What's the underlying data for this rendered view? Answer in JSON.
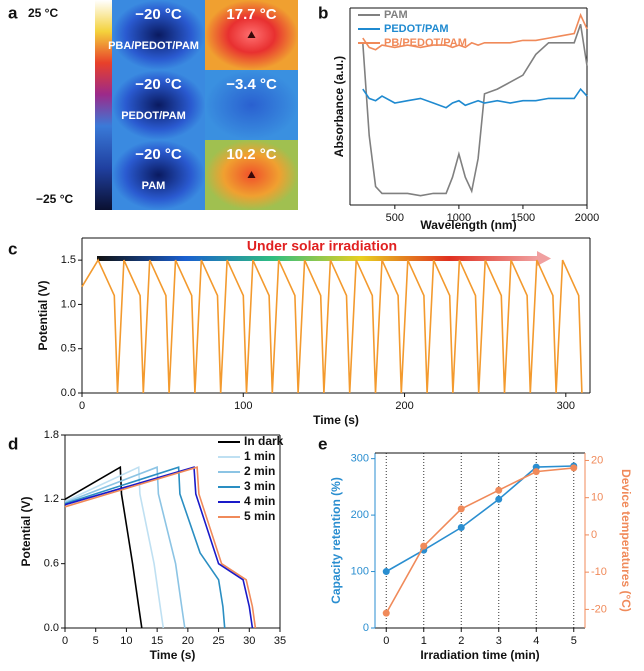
{
  "chart_data": [
    {
      "type": "thermal-image",
      "panel_label": "a",
      "scale_labels": [
        "25 °C",
        "−25 °C"
      ],
      "cells": [
        {
          "temperature": "−20 °C",
          "sample": "PBA/PEDOT/PAM"
        },
        {
          "temperature": "17.7 °C"
        },
        {
          "temperature": "−20 °C",
          "sample": "PEDOT/PAM"
        },
        {
          "temperature": "−3.4 °C"
        },
        {
          "temperature": "−20 °C",
          "sample": "PAM"
        },
        {
          "temperature": "10.2 °C"
        }
      ]
    },
    {
      "type": "line",
      "panel_label": "b",
      "xlabel": "Wavelength (nm)",
      "ylabel": "Absorbance (a.u.)",
      "x": [
        250,
        300,
        350,
        400,
        500,
        600,
        700,
        800,
        900,
        950,
        1000,
        1050,
        1100,
        1150,
        1200,
        1300,
        1400,
        1500,
        1600,
        1700,
        1800,
        1900,
        1950,
        2000
      ],
      "series": [
        {
          "name": "PAM",
          "color": "#808080",
          "values": [
            0.7,
            0.3,
            0.08,
            0.05,
            0.05,
            0.05,
            0.04,
            0.05,
            0.05,
            0.12,
            0.22,
            0.12,
            0.06,
            0.2,
            0.48,
            0.5,
            0.53,
            0.56,
            0.65,
            0.7,
            0.7,
            0.7,
            0.78,
            0.6
          ]
        },
        {
          "name": "PEDOT/PAM",
          "color": "#1f8ad0",
          "values": [
            0.5,
            0.46,
            0.45,
            0.47,
            0.44,
            0.45,
            0.46,
            0.44,
            0.42,
            0.44,
            0.45,
            0.43,
            0.44,
            0.45,
            0.44,
            0.45,
            0.44,
            0.45,
            0.45,
            0.46,
            0.46,
            0.46,
            0.5,
            0.47
          ]
        },
        {
          "name": "PB/PEDOT/PAM",
          "color": "#f08a5a",
          "values": [
            0.72,
            0.68,
            0.67,
            0.69,
            0.68,
            0.69,
            0.68,
            0.69,
            0.69,
            0.68,
            0.69,
            0.68,
            0.7,
            0.69,
            0.7,
            0.7,
            0.7,
            0.71,
            0.71,
            0.72,
            0.73,
            0.74,
            0.82,
            0.76
          ]
        }
      ],
      "xlim": [
        150,
        2000
      ],
      "xticks": [
        500,
        1000,
        1500,
        2000
      ],
      "ylim": [
        0,
        0.85
      ]
    },
    {
      "type": "line",
      "panel_label": "c",
      "xlabel": "Time (s)",
      "ylabel": "Potential (V)",
      "annotation": "Under solar irradiation",
      "x": [
        0,
        10,
        20,
        22,
        26,
        36,
        38,
        42,
        52,
        54,
        58,
        68,
        70,
        74,
        84,
        86,
        90,
        100,
        102,
        106,
        116,
        118,
        122,
        132,
        134,
        138,
        148,
        150,
        154,
        164,
        166,
        170,
        180,
        182,
        186,
        196,
        198,
        202,
        212,
        214,
        218,
        228,
        230,
        234,
        244,
        246,
        250,
        260,
        262,
        266,
        276,
        278,
        282,
        292,
        294,
        298,
        308,
        310
      ],
      "series": [
        {
          "name": null,
          "color": "#f39a2e",
          "values": [
            1.2,
            1.5,
            1.1,
            0,
            1.5,
            1.1,
            0,
            1.5,
            1.1,
            0,
            1.5,
            1.1,
            0,
            1.5,
            1.1,
            0,
            1.5,
            1.1,
            0,
            1.5,
            1.1,
            0,
            1.5,
            1.1,
            0,
            1.5,
            1.1,
            0,
            1.5,
            1.1,
            0,
            1.5,
            1.1,
            0,
            1.5,
            1.1,
            0,
            1.5,
            1.1,
            0,
            1.5,
            1.1,
            0,
            1.5,
            1.1,
            0,
            1.5,
            1.1,
            0,
            1.5,
            1.1,
            0,
            1.5,
            1.1,
            0,
            1.5,
            1.1,
            0
          ]
        }
      ],
      "xlim": [
        0,
        315
      ],
      "xticks": [
        0,
        100,
        200,
        300
      ],
      "ylim": [
        0,
        1.75
      ],
      "yticks": [
        {
          "value": 0,
          "label": "0.0"
        },
        0.5,
        {
          "value": 1,
          "label": "1.0"
        },
        1.5
      ]
    },
    {
      "type": "line",
      "panel_label": "d",
      "xlabel": "Time (s)",
      "ylabel": "Potential (V)",
      "series": [
        {
          "name": "In dark",
          "color": "#000000",
          "x": [
            0,
            9,
            9.2,
            11,
            12,
            12.5
          ],
          "values": [
            1.2,
            1.5,
            1.25,
            0.6,
            0.2,
            0
          ]
        },
        {
          "name": "1 min",
          "color": "#bfe0f2",
          "x": [
            0,
            12,
            12.2,
            14.5,
            15.5,
            16
          ],
          "values": [
            1.18,
            1.5,
            1.25,
            0.6,
            0.2,
            0
          ]
        },
        {
          "name": "2 min",
          "color": "#8cc4e4",
          "x": [
            0,
            15,
            15.2,
            18,
            19,
            19.5
          ],
          "values": [
            1.17,
            1.5,
            1.25,
            0.6,
            0.2,
            0
          ]
        },
        {
          "name": "3 min",
          "color": "#2a8ec2",
          "x": [
            0,
            18.5,
            18.7,
            22,
            25,
            25.7,
            26
          ],
          "values": [
            1.16,
            1.5,
            1.25,
            0.7,
            0.45,
            0.2,
            0
          ]
        },
        {
          "name": "4 min",
          "color": "#1a1ac8",
          "x": [
            0,
            21,
            21.3,
            25,
            29,
            30,
            30.5
          ],
          "values": [
            1.15,
            1.5,
            1.25,
            0.6,
            0.45,
            0.2,
            0
          ]
        },
        {
          "name": "5 min",
          "color": "#f08a5a",
          "x": [
            0,
            21.5,
            21.8,
            25.5,
            29.5,
            30.5,
            31
          ],
          "values": [
            1.13,
            1.5,
            1.25,
            0.6,
            0.45,
            0.2,
            0
          ]
        }
      ],
      "xlim": [
        0,
        35
      ],
      "xticks": [
        0,
        5,
        10,
        15,
        20,
        25,
        30,
        35
      ],
      "ylim": [
        0,
        1.8
      ],
      "yticks": [
        {
          "value": 0,
          "label": "0.0"
        },
        0.6,
        1.2,
        1.8
      ]
    },
    {
      "type": "line",
      "panel_label": "e",
      "xlabel": "Irradiation time (min)",
      "ylabel": "Capacity retention (%)",
      "y2label": "Device temperatures (°C)",
      "x": [
        0,
        1,
        2,
        3,
        4,
        5
      ],
      "markers": true,
      "grid": true,
      "series": [
        {
          "name": null,
          "color": "#2a8ed0",
          "values": [
            100,
            138,
            178,
            228,
            285,
            287
          ]
        },
        {
          "name": null,
          "color": "#f08a5a",
          "axis": "y2",
          "values": [
            -21,
            -3,
            7,
            12,
            17,
            18
          ]
        }
      ],
      "xlim": [
        -0.3,
        5.3
      ],
      "xticks": [
        0,
        1,
        2,
        3,
        4,
        5
      ],
      "ylim": [
        0,
        310
      ],
      "yticks": [
        0,
        100,
        200,
        300
      ],
      "y2lim": [
        -25,
        22
      ],
      "y2ticks": [
        -20,
        -10,
        0,
        10,
        20
      ]
    }
  ]
}
